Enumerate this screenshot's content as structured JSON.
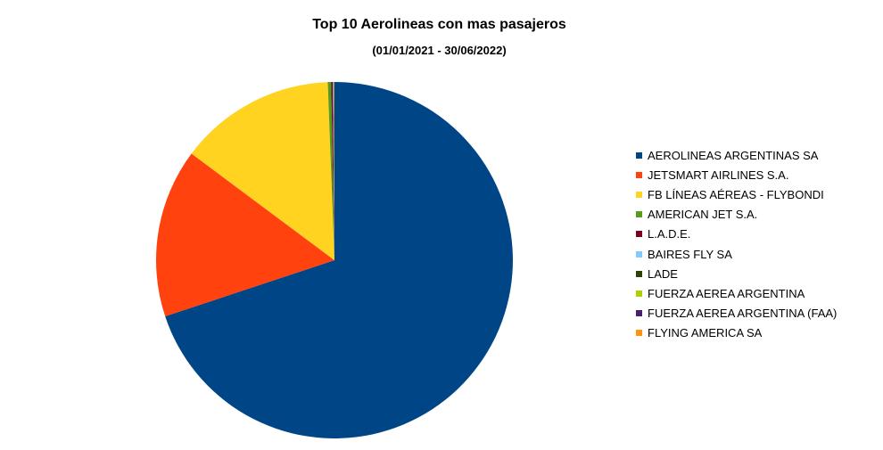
{
  "chart_data": {
    "type": "pie",
    "title": "Top 10 Aerolineas con mas pasajeros",
    "subtitle": "(01/01/2021 - 30/06/2022)",
    "categories": [
      "AEROLINEAS ARGENTINAS SA",
      "JETSMART AIRLINES S.A.",
      "FB LÍNEAS AÉREAS - FLYBONDI",
      "AMERICAN JET S.A.",
      "L.A.D.E.",
      "BAIRES FLY SA",
      "LADE",
      "FUERZA AEREA ARGENTINA",
      "FUERZA AEREA ARGENTINA (FAA)",
      "FLYING AMERICA SA"
    ],
    "values": [
      69.9,
      15.3,
      14.2,
      0.3,
      0.15,
      0.05,
      0.04,
      0.03,
      0.02,
      0.01
    ],
    "colors": [
      "#004586",
      "#ff420e",
      "#ffd320",
      "#579d1c",
      "#7e0021",
      "#83caff",
      "#314004",
      "#aecf00",
      "#4b1f6f",
      "#ff950e"
    ],
    "legend_position": "right"
  }
}
